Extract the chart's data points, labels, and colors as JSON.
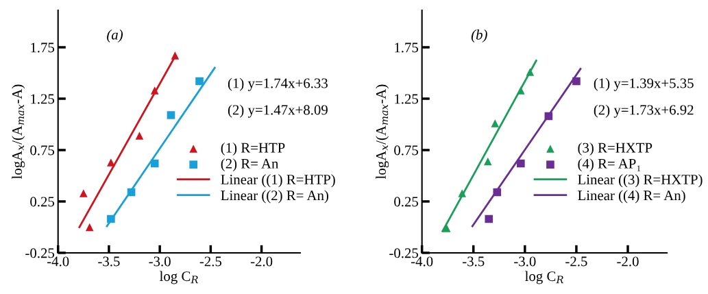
{
  "chart_data": [
    {
      "type": "scatter",
      "annotations": [
        "(a)",
        "(1) y=1.74x+6.33",
        "(2) y=1.47x+8.09"
      ],
      "xlabel": "log C$_{R}$",
      "ylabel": "logA$_{x}$/(A$_{max}$-A)",
      "xlim": [
        -4.0,
        -1.62
      ],
      "ylim": [
        -0.25,
        2.11
      ],
      "xticks": [
        {
          "value": -4,
          "label": "-4.0"
        },
        {
          "value": -3.5,
          "label": "-3.5"
        },
        {
          "value": -3,
          "label": "-3.0"
        },
        {
          "value": -2.5,
          "label": "-2.5"
        },
        {
          "value": -2,
          "label": "-2.0"
        }
      ],
      "yticks": [
        -0.25,
        0.25,
        0.75,
        1.25,
        1.75
      ],
      "grid": false,
      "legend": "right",
      "series": [
        {
          "name": "(1) R=HTP",
          "marker": "triangle",
          "color": "#d0141e",
          "x": [
            -3.75,
            -3.69,
            -3.48,
            -3.2,
            -3.05,
            -2.85
          ],
          "values": [
            0.33,
            0.0,
            0.63,
            0.89,
            1.33,
            1.67
          ]
        },
        {
          "name": "(2) R= An",
          "marker": "square",
          "color": "#1aa0d8",
          "x": [
            -3.48,
            -3.28,
            -3.05,
            -2.89,
            -2.61
          ],
          "values": [
            0.08,
            0.34,
            0.62,
            1.09,
            1.42
          ]
        },
        {
          "name": "Linear ((1) R=HTP)",
          "type": "line",
          "color": "#d0141e",
          "x": [
            -3.79,
            -2.85
          ],
          "values": [
            0.0,
            1.66
          ]
        },
        {
          "name": "Linear ((2) R= An)",
          "type": "line",
          "color": "#1aa0d8",
          "x": [
            -3.52,
            -2.46
          ],
          "values": [
            0.01,
            1.55
          ]
        }
      ]
    },
    {
      "type": "scatter",
      "annotations": [
        "(b)",
        "(1) y=1.39x+5.35",
        "(2) y=1.73x+6.92"
      ],
      "xlabel": "log C$_{R}$",
      "ylabel": "logA$_{x}$/(A$_{max}$-A)",
      "xlim": [
        -4.0,
        -1.62
      ],
      "ylim": [
        -0.25,
        2.11
      ],
      "xticks": [
        {
          "value": -4,
          "label": "-4.0"
        },
        {
          "value": -3.5,
          "label": "-3.5"
        },
        {
          "value": -3,
          "label": "-3.0"
        },
        {
          "value": -2.5,
          "label": "-2.5"
        },
        {
          "value": -2,
          "label": "-2.0"
        }
      ],
      "yticks": [
        -0.25,
        0.25,
        0.75,
        1.25,
        1.75
      ],
      "grid": false,
      "legend": "right",
      "series": [
        {
          "name": "(3) R=HXTP",
          "marker": "triangle",
          "color": "#1a9f5a",
          "x": [
            -3.76,
            -3.61,
            -3.36,
            -3.29,
            -3.04,
            -2.95
          ],
          "values": [
            -0.01,
            0.33,
            0.64,
            1.01,
            1.33,
            1.51
          ]
        },
        {
          "name": "(4) R= AP₁",
          "marker": "square",
          "color": "#6a2d91",
          "x": [
            -3.35,
            -3.27,
            -3.04,
            -2.77,
            -2.5
          ],
          "values": [
            0.08,
            0.34,
            0.62,
            1.08,
            1.42
          ]
        },
        {
          "name": "Linear ((3) R=HXTP)",
          "type": "line",
          "color": "#1a9f5a",
          "x": [
            -3.8,
            -2.89
          ],
          "values": [
            -0.04,
            1.62
          ]
        },
        {
          "name": "Linear ((4) R= An)",
          "type": "line",
          "color": "#6a2d91",
          "x": [
            -3.51,
            -2.46
          ],
          "values": [
            0.01,
            1.54
          ]
        }
      ]
    }
  ]
}
